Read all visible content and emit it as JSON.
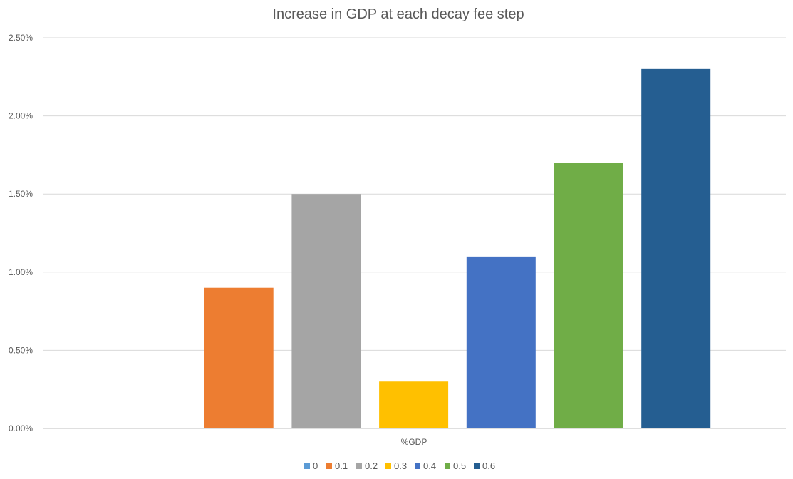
{
  "chart_data": {
    "type": "bar",
    "title": "Increase in GDP at each decay fee step",
    "categories": [
      "%GDP"
    ],
    "series": [
      {
        "name": "0",
        "values": [
          0.0
        ],
        "color": "#5b9bd5"
      },
      {
        "name": "0.1",
        "values": [
          0.9
        ],
        "color": "#ed7d31"
      },
      {
        "name": "0.2",
        "values": [
          1.5
        ],
        "color": "#a5a5a5"
      },
      {
        "name": "0.3",
        "values": [
          0.3
        ],
        "color": "#ffc000"
      },
      {
        "name": "0.4",
        "values": [
          1.1
        ],
        "color": "#4472c4"
      },
      {
        "name": "0.5",
        "values": [
          1.7
        ],
        "color": "#70ad47"
      },
      {
        "name": "0.6",
        "values": [
          2.3
        ],
        "color": "#255e91"
      }
    ],
    "yticks": [
      "0.00%",
      "0.50%",
      "1.00%",
      "1.50%",
      "2.00%",
      "2.50%"
    ],
    "ylim": [
      0,
      2.5
    ],
    "xlabel": "",
    "ylabel": "",
    "grid": true,
    "legend": "bottom"
  }
}
